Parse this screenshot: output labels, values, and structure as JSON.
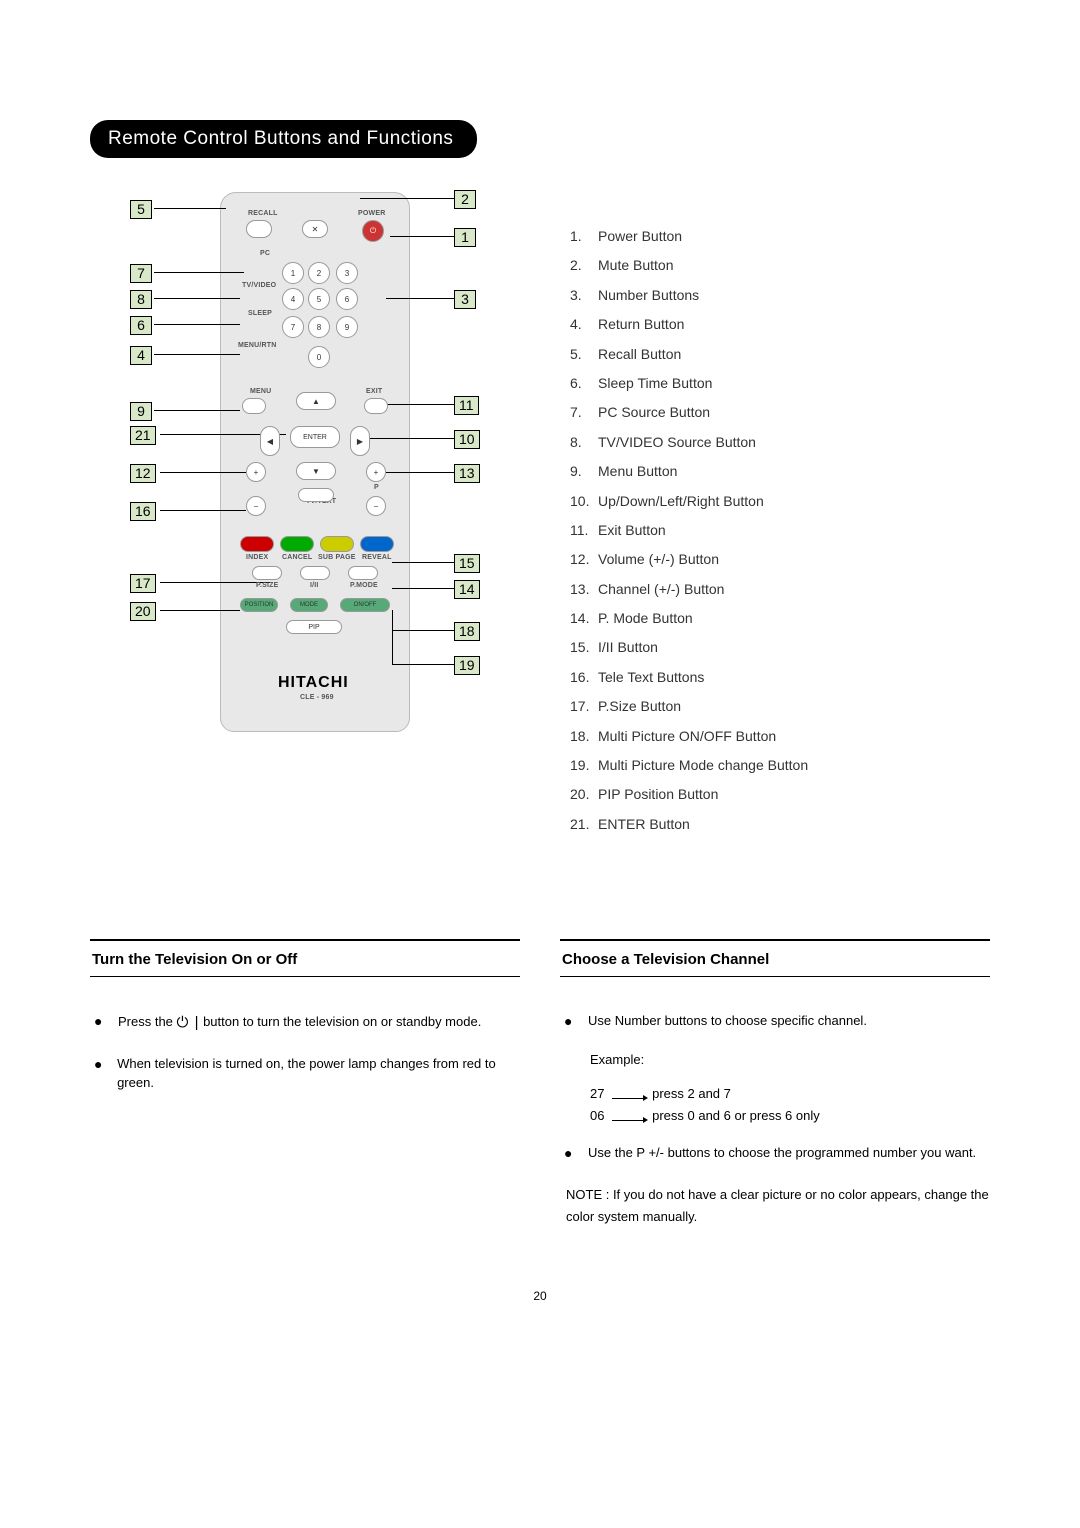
{
  "title": "Remote Control Buttons and Functions",
  "buttons_list": [
    "Power Button",
    "Mute Button",
    "Number Buttons",
    "Return Button",
    "Recall Button",
    "Sleep Time Button",
    "PC Source Button",
    "TV/VIDEO Source Button",
    "Menu Button",
    "Up/Down/Left/Right Button",
    "Exit Button",
    "Volume (+/-) Button",
    "Channel (+/-) Button",
    "P. Mode Button",
    "I/II Button",
    "Tele Text Buttons",
    "P.Size Button",
    "Multi Picture ON/OFF Button",
    "Multi Picture Mode change Button",
    "PIP Position Button",
    "ENTER Button"
  ],
  "callouts_left": [
    "5",
    "7",
    "8",
    "6",
    "4",
    "9",
    "21",
    "12",
    "16",
    "17",
    "20"
  ],
  "callouts_right": [
    "2",
    "1",
    "3",
    "11",
    "10",
    "13",
    "15",
    "14",
    "18",
    "19"
  ],
  "remote_labels": {
    "recall": "RECALL",
    "power": "POWER",
    "pc": "PC",
    "tvvideo": "TV/VIDEO",
    "sleep": "SLEEP",
    "menurtn": "MENU/RTN",
    "menu": "MENU",
    "exit": "EXIT",
    "enter": "ENTER",
    "tvtext": "TV/TEXT",
    "index": "INDEX",
    "cancel": "CANCEL",
    "subpage": "SUB PAGE",
    "reveal": "REVEAL",
    "psize": "P.SIZE",
    "iii": "I/II",
    "pmode": "P.MODE",
    "position": "POSITION",
    "mode": "MODE",
    "onoff": "ON/OFF",
    "pip": "PIP",
    "p": "P",
    "brand": "HITACHI",
    "model": "CLE - 969"
  },
  "section_left": {
    "heading": "Turn the Television On or Off",
    "bullet1a": "Press the ",
    "bullet1b": " button to turn the television on or standby mode.",
    "bullet2": "When television is turned on, the power lamp changes from red to green."
  },
  "section_right": {
    "heading": "Choose a Television Channel",
    "bullet1": "Use Number buttons to choose specific channel.",
    "example_label": "Example:",
    "ex1_num": "27",
    "ex1_text": "press 2 and 7",
    "ex2_num": "06",
    "ex2_text": "press 0 and 6 or press 6 only",
    "bullet2": "Use the P +/- buttons to choose the programmed number you want.",
    "note": "NOTE : If you do not have a clear picture or no color appears, change the color system manually."
  },
  "page_number": "20",
  "colors": {
    "callout_fill": "#d9e8c8",
    "remote_body": "#e8e8e8",
    "power_btn": "#cc3333"
  }
}
